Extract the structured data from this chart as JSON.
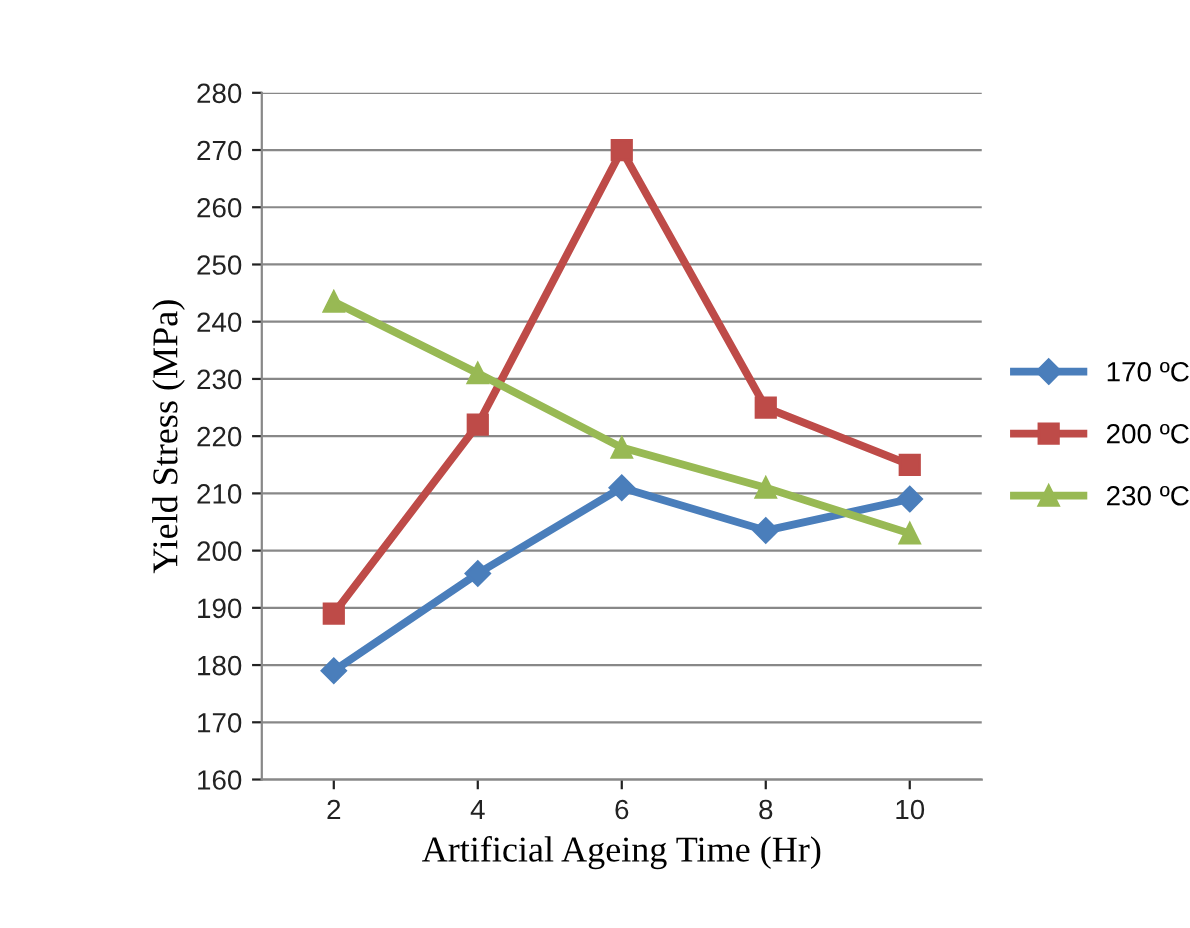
{
  "chart_data": {
    "type": "line",
    "xlabel": "Artificial Ageing Time (Hr)",
    "ylabel": "Yield Stress (MPa)",
    "categories": [
      "2",
      "4",
      "6",
      "8",
      "10"
    ],
    "series": [
      {
        "name": "170 ºC",
        "color": "#4a7ebb",
        "marker": "diamond",
        "values": [
          179,
          196,
          211,
          203.5,
          209
        ]
      },
      {
        "name": "200 ºC",
        "color": "#be4b48",
        "marker": "square",
        "values": [
          189,
          222,
          270,
          225,
          215
        ]
      },
      {
        "name": "230 ºC",
        "color": "#98b954",
        "marker": "triangle",
        "values": [
          243.5,
          231,
          218,
          211,
          203
        ]
      }
    ],
    "ylim": [
      160,
      280
    ],
    "yticks": [
      160,
      170,
      180,
      190,
      200,
      210,
      220,
      230,
      240,
      250,
      260,
      270,
      280
    ],
    "grid": "y",
    "legend": "right",
    "line_style": "solid"
  }
}
